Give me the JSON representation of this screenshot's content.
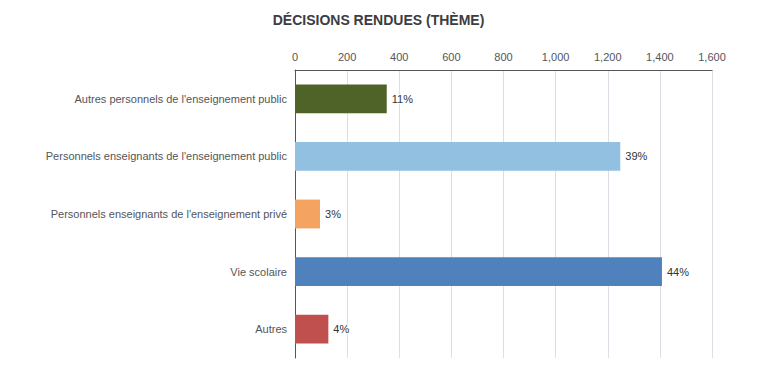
{
  "chart_data": {
    "type": "bar",
    "orientation": "horizontal",
    "title": "DÉCISIONS RENDUES (THÈME)",
    "categories": [
      "Autres personnels de l'enseignement public",
      "Personnels enseignants de l'enseignement public",
      "Personnels enseignants de l'enseignement privé",
      "Vie scolaire",
      "Autres"
    ],
    "values": [
      352,
      1248,
      96,
      1408,
      128
    ],
    "value_labels": [
      "11%",
      "39%",
      "3%",
      "44%",
      "4%"
    ],
    "data_labels": true,
    "colors": [
      "#4F6228",
      "#92C0E0",
      "#F4A460",
      "#4F81BD",
      "#C0504D"
    ],
    "xlim": [
      0,
      1600
    ],
    "xticks": [
      0,
      200,
      400,
      600,
      800,
      1000,
      1200,
      1400,
      1600
    ],
    "grid": true
  }
}
